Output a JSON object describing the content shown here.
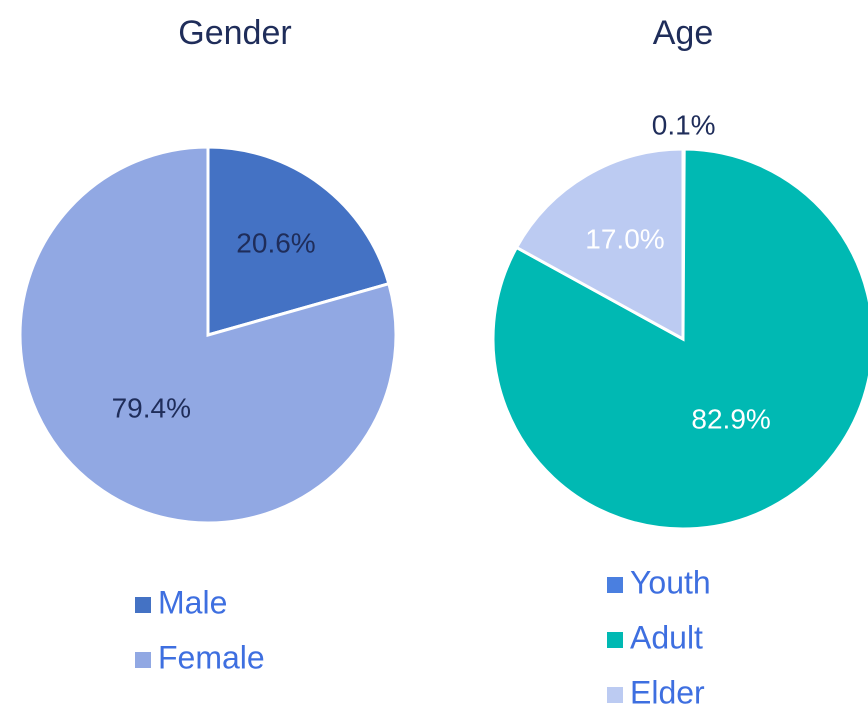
{
  "chart_data": [
    {
      "type": "pie",
      "title": "Gender",
      "categories": [
        "Male",
        "Female"
      ],
      "values": [
        20.6,
        79.4
      ],
      "value_labels": [
        "20.6%",
        "79.4%"
      ],
      "colors": [
        "#4472c4",
        "#91a8e3"
      ],
      "label_colors": [
        "#1f2d5a",
        "#1f2d5a"
      ]
    },
    {
      "type": "pie",
      "title": "Age",
      "categories": [
        "Youth",
        "Adult",
        "Elder"
      ],
      "values": [
        0.1,
        82.9,
        17.0
      ],
      "value_labels": [
        "0.1%",
        "82.9%",
        "17.0%"
      ],
      "colors": [
        "#4a7fe0",
        "#00b9b3",
        "#bccbf2"
      ],
      "label_colors": [
        "#1f2d5a",
        "#ffffff",
        "#ffffff"
      ]
    }
  ]
}
